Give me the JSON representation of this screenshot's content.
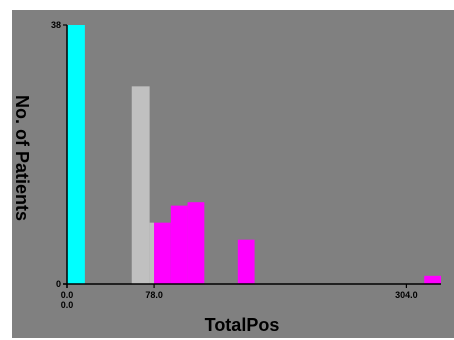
{
  "chart_data": {
    "type": "bar",
    "xlabel": "TotalPos",
    "ylabel": "No. of Patients",
    "ylim": [
      0,
      38
    ],
    "y_ticks": [
      "38",
      "0"
    ],
    "x_ticks": [
      "0.0",
      "78.0",
      "304.0"
    ],
    "x_tick_extra": "0.0",
    "xlim": [
      0,
      335
    ],
    "grid": false,
    "bars": [
      {
        "x0": 0,
        "x1": 16,
        "value": 38,
        "color": "#00ffff"
      },
      {
        "x0": 58,
        "x1": 74,
        "value": 29,
        "color": "#c0c0c0"
      },
      {
        "x0": 74,
        "x1": 78,
        "value": 9,
        "color": "#c0c0c0"
      },
      {
        "x0": 78,
        "x1": 93,
        "value": 9,
        "color": "#ff00ff"
      },
      {
        "x0": 93,
        "x1": 108,
        "value": 11.5,
        "color": "#ff00ff"
      },
      {
        "x0": 108,
        "x1": 123,
        "value": 12,
        "color": "#ff00ff"
      },
      {
        "x0": 153,
        "x1": 168,
        "value": 6.5,
        "color": "#ff00ff"
      },
      {
        "x0": 320,
        "x1": 335,
        "value": 1.2,
        "color": "#ff00ff"
      }
    ],
    "colors": {
      "background": "#808080",
      "frame": "#ffffff",
      "axis": "#000000",
      "cyan": "#00ffff",
      "gray": "#c0c0c0",
      "magenta": "#ff00ff"
    }
  }
}
